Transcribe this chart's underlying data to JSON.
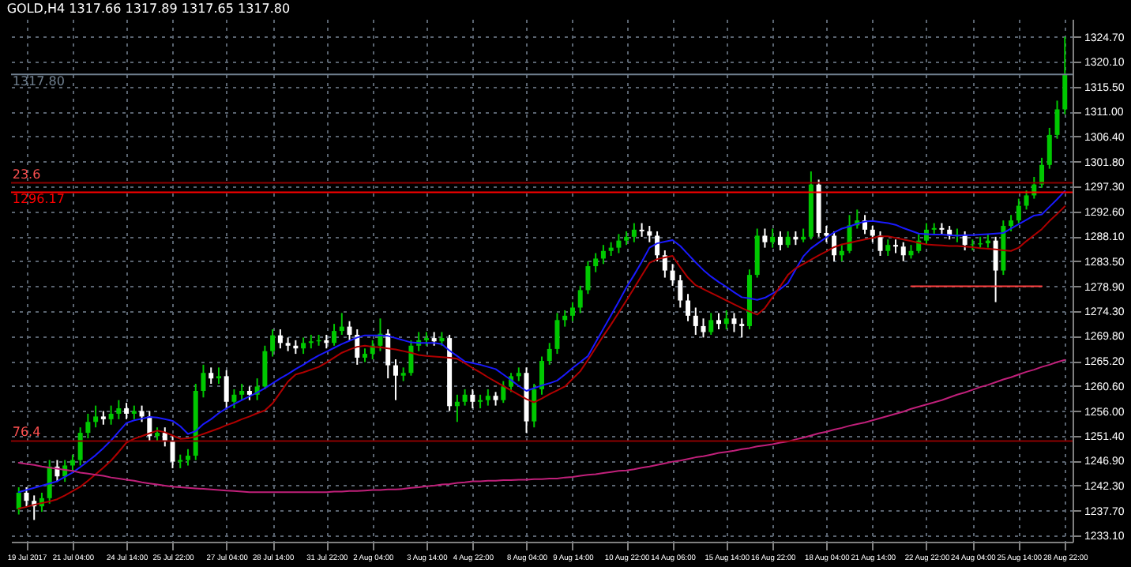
{
  "chart_data": {
    "type": "candlestick",
    "title": "GOLD,H4  1317.66 1317.89 1317.65 1317.80",
    "categories": [
      null,
      "19 Jul 2017",
      null,
      null,
      null,
      null,
      null,
      "21 Jul 04:00",
      null,
      null,
      null,
      null,
      null,
      null,
      "24 Jul 14:00",
      null,
      null,
      null,
      null,
      null,
      "25 Jul 22:00",
      null,
      null,
      null,
      null,
      null,
      null,
      "27 Jul 04:00",
      null,
      null,
      null,
      null,
      null,
      "28 Jul 14:00",
      null,
      null,
      null,
      null,
      null,
      null,
      "31 Jul 22:00",
      null,
      null,
      null,
      null,
      null,
      "2 Aug 04:00",
      null,
      null,
      null,
      null,
      null,
      null,
      "3 Aug 14:00",
      null,
      null,
      null,
      null,
      null,
      "4 Aug 22:00",
      null,
      null,
      null,
      null,
      null,
      null,
      "8 Aug 04:00",
      null,
      null,
      null,
      null,
      null,
      "9 Aug 14:00",
      null,
      null,
      null,
      null,
      null,
      null,
      "10 Aug 22:00",
      null,
      null,
      null,
      null,
      null,
      "14 Aug 06:00",
      null,
      null,
      null,
      null,
      null,
      null,
      "15 Aug 14:00",
      null,
      null,
      null,
      null,
      null,
      "16 Aug 22:00",
      null,
      null,
      null,
      null,
      null,
      null,
      "18 Aug 04:00",
      null,
      null,
      null,
      null,
      null,
      "21 Aug 14:00",
      null,
      null,
      null,
      null,
      null,
      null,
      "22 Aug 22:00",
      null,
      null,
      null,
      null,
      null,
      "24 Aug 04:00",
      null,
      null,
      null,
      null,
      null,
      "25 Aug 14:00",
      null,
      null,
      null,
      null,
      null,
      "28 Aug 22:00"
    ],
    "ohlc": [
      [
        1238,
        1242,
        1237,
        1241
      ],
      [
        1241,
        1242,
        1238.5,
        1239.5
      ],
      [
        1239.5,
        1240.5,
        1236,
        1238.5
      ],
      [
        1238.5,
        1241,
        1237.5,
        1240
      ],
      [
        1240,
        1247,
        1239,
        1245.8
      ],
      [
        1245.8,
        1247,
        1243,
        1244
      ],
      [
        1244,
        1247,
        1243,
        1246
      ],
      [
        1246,
        1248,
        1245,
        1247
      ],
      [
        1247,
        1253,
        1246,
        1252
      ],
      [
        1252,
        1255.5,
        1251,
        1254
      ],
      [
        1254,
        1257,
        1253,
        1255
      ],
      [
        1255,
        1256,
        1253.5,
        1254.5
      ],
      [
        1254.5,
        1257,
        1253.5,
        1255.5
      ],
      [
        1255.5,
        1258,
        1254.5,
        1256.5
      ],
      [
        1256.5,
        1257.5,
        1254.5,
        1255.5
      ],
      [
        1255.5,
        1257,
        1254.5,
        1256
      ],
      [
        1256,
        1257,
        1254,
        1255
      ],
      [
        1255,
        1256,
        1250.5,
        1251.4
      ],
      [
        1251.4,
        1253,
        1250.5,
        1252
      ],
      [
        1252,
        1253,
        1249.5,
        1250.5
      ],
      [
        1250.5,
        1251.5,
        1245.5,
        1246.7
      ],
      [
        1246.7,
        1248,
        1245.5,
        1247
      ],
      [
        1247,
        1249,
        1246,
        1247.8
      ],
      [
        1247.8,
        1261,
        1247,
        1259.7
      ],
      [
        1259.7,
        1264.5,
        1258.5,
        1263
      ],
      [
        1263,
        1264,
        1261,
        1262
      ],
      [
        1262,
        1264,
        1261,
        1262.4
      ],
      [
        1262.4,
        1263.5,
        1256.5,
        1257.7
      ],
      [
        1257.7,
        1260,
        1256.5,
        1259
      ],
      [
        1259,
        1261,
        1258,
        1259.7
      ],
      [
        1259.7,
        1260.5,
        1258,
        1259
      ],
      [
        1259,
        1262,
        1258,
        1260.5
      ],
      [
        1260.5,
        1268,
        1260,
        1267
      ],
      [
        1267,
        1271,
        1266,
        1269.9
      ],
      [
        1269.9,
        1271,
        1267.5,
        1268.5
      ],
      [
        1268.5,
        1269.5,
        1267,
        1268
      ],
      [
        1268,
        1269,
        1266.5,
        1267.5
      ],
      [
        1267.5,
        1269.5,
        1266.5,
        1268.5
      ],
      [
        1268.5,
        1270,
        1267.5,
        1268.8
      ],
      [
        1268.8,
        1270,
        1268,
        1269
      ],
      [
        1269,
        1270,
        1267.5,
        1268.5
      ],
      [
        1268.5,
        1272,
        1268,
        1270.7
      ],
      [
        1270.7,
        1274,
        1270,
        1271.5
      ],
      [
        1271.5,
        1272.5,
        1269,
        1270
      ],
      [
        1270,
        1271,
        1264.5,
        1265.8
      ],
      [
        1265.8,
        1267.5,
        1265,
        1266.5
      ],
      [
        1266.5,
        1269,
        1265.5,
        1268
      ],
      [
        1268,
        1273,
        1267,
        1270.2
      ],
      [
        1270.2,
        1271,
        1262,
        1264.4
      ],
      [
        1264.4,
        1265.5,
        1258,
        1262.5
      ],
      [
        1262.5,
        1264,
        1261.5,
        1263
      ],
      [
        1263,
        1269,
        1262.5,
        1268
      ],
      [
        1268,
        1270.5,
        1267,
        1269
      ],
      [
        1269,
        1270.5,
        1268,
        1269.4
      ],
      [
        1269.4,
        1270.5,
        1268,
        1268.8
      ],
      [
        1268.8,
        1270.5,
        1268,
        1269.4
      ],
      [
        1269.4,
        1270,
        1256,
        1256.9
      ],
      [
        1256.9,
        1259,
        1254,
        1257.7
      ],
      [
        1257.7,
        1260,
        1257,
        1259
      ],
      [
        1259,
        1260,
        1256.5,
        1257.7
      ],
      [
        1257.7,
        1259,
        1256.5,
        1258
      ],
      [
        1258,
        1260,
        1257,
        1258.8
      ],
      [
        1258.8,
        1259.5,
        1257,
        1258
      ],
      [
        1258,
        1261.5,
        1257.5,
        1260.5
      ],
      [
        1260.5,
        1263,
        1259.5,
        1262.4
      ],
      [
        1262.4,
        1264,
        1261.5,
        1263
      ],
      [
        1263,
        1264,
        1252,
        1254.1
      ],
      [
        1254.1,
        1261,
        1253,
        1260
      ],
      [
        1260,
        1266,
        1259,
        1265.2
      ],
      [
        1265.2,
        1268.5,
        1264.5,
        1267.4
      ],
      [
        1267.4,
        1274,
        1266.5,
        1272.7
      ],
      [
        1272.7,
        1274.5,
        1271.5,
        1273.5
      ],
      [
        1273.5,
        1276,
        1272.5,
        1275
      ],
      [
        1275,
        1279,
        1274,
        1278.2
      ],
      [
        1278.2,
        1283.5,
        1277.5,
        1282.6
      ],
      [
        1282.6,
        1285,
        1281.5,
        1284
      ],
      [
        1284,
        1286.5,
        1283,
        1285.4
      ],
      [
        1285.4,
        1287,
        1284.5,
        1286
      ],
      [
        1286,
        1288.5,
        1285,
        1287.3
      ],
      [
        1287.3,
        1289,
        1286.5,
        1288
      ],
      [
        1288,
        1290.5,
        1287,
        1289.3
      ],
      [
        1289.3,
        1290.5,
        1288,
        1289
      ],
      [
        1289,
        1290,
        1287,
        1288.2
      ],
      [
        1288.2,
        1289,
        1283.5,
        1284.6
      ],
      [
        1284.6,
        1285.5,
        1280.5,
        1281.8
      ],
      [
        1281.8,
        1283,
        1279,
        1280
      ],
      [
        1280,
        1281,
        1275,
        1276.3
      ],
      [
        1276.3,
        1277.5,
        1272.5,
        1273.5
      ],
      [
        1273.5,
        1275,
        1270,
        1271.6
      ],
      [
        1271.6,
        1273,
        1269.5,
        1270.5
      ],
      [
        1270.5,
        1274,
        1270,
        1272.7
      ],
      [
        1272.7,
        1274,
        1271,
        1272
      ],
      [
        1272,
        1274.5,
        1271,
        1273
      ],
      [
        1273,
        1274,
        1270.5,
        1272
      ],
      [
        1272,
        1273,
        1269.5,
        1271.6
      ],
      [
        1271.6,
        1282,
        1271,
        1281
      ],
      [
        1281,
        1289.5,
        1280.5,
        1288.2
      ],
      [
        1288.2,
        1289.5,
        1286,
        1287
      ],
      [
        1287,
        1289.5,
        1286,
        1288
      ],
      [
        1288,
        1289,
        1285.5,
        1286.5
      ],
      [
        1286.5,
        1289,
        1286,
        1288
      ],
      [
        1288,
        1289,
        1286.5,
        1287.5
      ],
      [
        1287.5,
        1289.5,
        1287,
        1288
      ],
      [
        1288,
        1300,
        1287.5,
        1297.6
      ],
      [
        1297.6,
        1298.5,
        1288,
        1288.7
      ],
      [
        1288.7,
        1290,
        1287,
        1288.2
      ],
      [
        1288.2,
        1289,
        1283.5,
        1284.6
      ],
      [
        1284.6,
        1286.5,
        1283.5,
        1285.4
      ],
      [
        1285.4,
        1292,
        1285,
        1290.1
      ],
      [
        1290.1,
        1293,
        1289.5,
        1291
      ],
      [
        1291,
        1292,
        1288.5,
        1289.3
      ],
      [
        1289.3,
        1290,
        1287,
        1288.2
      ],
      [
        1288.2,
        1289,
        1284.5,
        1285.4
      ],
      [
        1285.4,
        1287.5,
        1284.5,
        1286.5
      ],
      [
        1286.5,
        1287.5,
        1285,
        1286.2
      ],
      [
        1286.2,
        1287,
        1283.5,
        1284.6
      ],
      [
        1284.6,
        1286.5,
        1284,
        1285.4
      ],
      [
        1285.4,
        1288.5,
        1285,
        1287.3
      ],
      [
        1287.3,
        1290.5,
        1286.5,
        1289.3
      ],
      [
        1289.3,
        1290.5,
        1288.5,
        1289.6
      ],
      [
        1289.6,
        1290.5,
        1288.5,
        1289.3
      ],
      [
        1289.3,
        1290,
        1287.5,
        1288.2
      ],
      [
        1288.2,
        1289.5,
        1287,
        1288.4
      ],
      [
        1288.4,
        1289,
        1285.5,
        1286.5
      ],
      [
        1286.5,
        1287.5,
        1285.5,
        1286.6
      ],
      [
        1286.6,
        1288,
        1286,
        1286.8
      ],
      [
        1286.8,
        1288.5,
        1286,
        1287.3
      ],
      [
        1287.3,
        1288,
        1276,
        1281.8
      ],
      [
        1281.8,
        1291,
        1281,
        1290
      ],
      [
        1290,
        1292,
        1289,
        1291
      ],
      [
        1291,
        1295,
        1290.5,
        1293.7
      ],
      [
        1293.7,
        1296.5,
        1293,
        1295.6
      ],
      [
        1295.6,
        1299,
        1295,
        1297.6
      ],
      [
        1297.6,
        1302.5,
        1297,
        1301.2
      ],
      [
        1301.2,
        1308,
        1300.5,
        1306.7
      ],
      [
        1306.7,
        1313,
        1306,
        1311.4
      ],
      [
        1311.4,
        1324.7,
        1310.5,
        1317.8
      ]
    ],
    "colors": [
      "#00c800",
      "#ffffff",
      "#ffffff",
      "#00c800",
      "#00c800",
      "#ffffff",
      "#00c800",
      "#00c800",
      "#00c800",
      "#00c800",
      "#00c800",
      "#ffffff",
      "#00c800",
      "#00c800",
      "#ffffff",
      "#00c800",
      "#ffffff",
      "#ffffff",
      "#00c800",
      "#ffffff",
      "#ffffff",
      "#00c800",
      "#00c800",
      "#00c800",
      "#00c800",
      "#ffffff",
      "#00c800",
      "#ffffff",
      "#00c800",
      "#00c800",
      "#ffffff",
      "#00c800",
      "#00c800",
      "#00c800",
      "#ffffff",
      "#ffffff",
      "#ffffff",
      "#00c800",
      "#00c800",
      "#00c800",
      "#ffffff",
      "#00c800",
      "#00c800",
      "#ffffff",
      "#ffffff",
      "#00c800",
      "#00c800",
      "#00c800",
      "#ffffff",
      "#ffffff",
      "#00c800",
      "#00c800",
      "#00c800",
      "#00c800",
      "#ffffff",
      "#00c800",
      "#ffffff",
      "#00c800",
      "#00c800",
      "#ffffff",
      "#00c800",
      "#00c800",
      "#ffffff",
      "#00c800",
      "#00c800",
      "#00c800",
      "#ffffff",
      "#00c800",
      "#00c800",
      "#00c800",
      "#00c800",
      "#00c800",
      "#00c800",
      "#00c800",
      "#00c800",
      "#00c800",
      "#00c800",
      "#00c800",
      "#00c800",
      "#00c800",
      "#00c800",
      "#ffffff",
      "#ffffff",
      "#ffffff",
      "#ffffff",
      "#ffffff",
      "#ffffff",
      "#ffffff",
      "#ffffff",
      "#ffffff",
      "#00c800",
      "#ffffff",
      "#00c800",
      "#ffffff",
      "#ffffff",
      "#00c800",
      "#00c800",
      "#ffffff",
      "#00c800",
      "#ffffff",
      "#00c800",
      "#ffffff",
      "#00c800",
      "#00c800",
      "#ffffff",
      "#ffffff",
      "#ffffff",
      "#00c800",
      "#00c800",
      "#00c800",
      "#ffffff",
      "#ffffff",
      "#ffffff",
      "#00c800",
      "#ffffff",
      "#ffffff",
      "#00c800",
      "#00c800",
      "#00c800",
      "#00c800",
      "#ffffff",
      "#ffffff",
      "#00c800",
      "#ffffff",
      "#00c800",
      "#00c800",
      "#00c800",
      "#ffffff",
      "#00c800",
      "#00c800",
      "#00c800",
      "#00c800",
      "#00c800",
      "#00c800",
      "#00c800",
      "#00c800",
      "#00c800"
    ],
    "series": [
      {
        "type": "line",
        "color": "#1a1aff",
        "values": [
          1241.1,
          1241.5,
          1241.9,
          1242.3,
          1242.7,
          1243.1,
          1243.9,
          1244.7,
          1245.7,
          1246.8,
          1247.9,
          1249.2,
          1250.6,
          1252.2,
          1253.8,
          1254.3,
          1254.6,
          1254.9,
          1254.8,
          1254.5,
          1254.2,
          1253.2,
          1251.8,
          1252.3,
          1253.6,
          1254.5,
          1255.6,
          1256.5,
          1257.3,
          1258,
          1258.7,
          1259.4,
          1260.2,
          1261.1,
          1262,
          1262.8,
          1263.7,
          1264.5,
          1265.4,
          1266.2,
          1266.9,
          1267.6,
          1268.3,
          1268.9,
          1269.5,
          1269.9,
          1269.9,
          1269.9,
          1269.8,
          1269.4,
          1269,
          1268.6,
          1268.5,
          1268.5,
          1268.5,
          1268.3,
          1267.1,
          1266.1,
          1265.1,
          1264.8,
          1264.5,
          1264.1,
          1263.7,
          1262.7,
          1261.7,
          1260.6,
          1259.7,
          1260.2,
          1260.7,
          1261.1,
          1261.6,
          1262.7,
          1263.9,
          1265,
          1266.1,
          1268.6,
          1271.1,
          1273.6,
          1276.1,
          1278.7,
          1281,
          1283.4,
          1286,
          1286.8,
          1287.1,
          1287.4,
          1286.3,
          1284.8,
          1283.3,
          1281.9,
          1280.7,
          1279.7,
          1278.8,
          1277.8,
          1276.9,
          1276.7,
          1276.4,
          1276.8,
          1277.6,
          1278.4,
          1279.5,
          1282,
          1284.4,
          1285.9,
          1286.9,
          1287.9,
          1288.8,
          1289.5,
          1289.9,
          1290.4,
          1290.8,
          1290.9,
          1290.7,
          1290.5,
          1290.2,
          1289.6,
          1289.1,
          1288.6,
          1288.5,
          1288.4,
          1288.4,
          1288.3,
          1288.2,
          1288.3,
          1288.3,
          1288.4,
          1288.5,
          1288.6,
          1288.7,
          1289.5,
          1290.3,
          1291.1,
          1291.9,
          1292.1,
          1293.5,
          1294.9,
          1296.4
        ]
      },
      {
        "type": "line",
        "color": "#b00000",
        "values": [
          1238.1,
          1238.4,
          1238.8,
          1239.1,
          1239.4,
          1239.8,
          1240.5,
          1241.3,
          1242.1,
          1243.2,
          1244.4,
          1245.6,
          1246.9,
          1248.5,
          1250.2,
          1250.9,
          1251.4,
          1251.9,
          1252.4,
          1252.1,
          1251.5,
          1250.9,
          1251,
          1251.3,
          1251.8,
          1252.3,
          1252.8,
          1253.4,
          1253.9,
          1254.5,
          1255,
          1255.6,
          1256.1,
          1257.4,
          1259.4,
          1261.4,
          1262.7,
          1263.1,
          1263.6,
          1264.1,
          1264.9,
          1265.8,
          1266.7,
          1267.3,
          1267.8,
          1268,
          1267.8,
          1267.7,
          1267.5,
          1267.3,
          1267,
          1266.7,
          1266.3,
          1266.1,
          1266,
          1265.9,
          1265.8,
          1265.6,
          1264.8,
          1263.9,
          1263.1,
          1262.2,
          1261.4,
          1260.6,
          1259.8,
          1259,
          1258.2,
          1257.6,
          1258.3,
          1259.1,
          1259.8,
          1260.5,
          1261.9,
          1263.3,
          1265.4,
          1267.6,
          1269.8,
          1271.9,
          1274.1,
          1276.3,
          1278.6,
          1280.9,
          1283.2,
          1283.9,
          1284.2,
          1284.5,
          1282.4,
          1280.5,
          1279.1,
          1278.4,
          1277.7,
          1277,
          1276.3,
          1275.6,
          1274.9,
          1274.3,
          1273.7,
          1274.9,
          1276.9,
          1278.9,
          1281,
          1282.2,
          1283,
          1283.8,
          1284.6,
          1285.3,
          1286.1,
          1286.6,
          1286.9,
          1287.2,
          1287.5,
          1287.8,
          1288.1,
          1288.1,
          1287.8,
          1287.5,
          1287.2,
          1286.9,
          1286.6,
          1286.5,
          1286.4,
          1286.3,
          1286.3,
          1286.2,
          1286.1,
          1285.9,
          1285.8,
          1285.7,
          1285.5,
          1285.4,
          1286,
          1287.2,
          1288.3,
          1289.4,
          1290.9,
          1292.2,
          1293.6
        ]
      },
      {
        "type": "line",
        "color": "#c0207a",
        "values": [
          1246.5,
          1246.3,
          1246.1,
          1245.8,
          1245.6,
          1245.4,
          1245.2,
          1245,
          1244.7,
          1244.5,
          1244.3,
          1244.1,
          1243.8,
          1243.6,
          1243.4,
          1243.2,
          1242.9,
          1242.7,
          1242.5,
          1242.3,
          1242.1,
          1242,
          1241.9,
          1241.8,
          1241.7,
          1241.6,
          1241.5,
          1241.4,
          1241.3,
          1241.2,
          1241.1,
          1241.1,
          1241.1,
          1241.1,
          1241.1,
          1241.1,
          1241.1,
          1241.1,
          1241.1,
          1241.1,
          1241.1,
          1241.2,
          1241.2,
          1241.3,
          1241.3,
          1241.4,
          1241.5,
          1241.5,
          1241.6,
          1241.6,
          1241.7,
          1241.9,
          1242,
          1242.2,
          1242.3,
          1242.5,
          1242.6,
          1242.8,
          1242.9,
          1243.1,
          1243.1,
          1243.2,
          1243.2,
          1243.3,
          1243.3,
          1243.4,
          1243.4,
          1243.5,
          1243.5,
          1243.6,
          1243.6,
          1243.8,
          1243.9,
          1244.1,
          1244.3,
          1244.4,
          1244.6,
          1244.8,
          1245,
          1245.1,
          1245.3,
          1245.6,
          1245.8,
          1246.1,
          1246.4,
          1246.7,
          1246.9,
          1247.2,
          1247.5,
          1247.7,
          1248,
          1248.3,
          1248.5,
          1248.7,
          1249,
          1249.2,
          1249.5,
          1249.7,
          1249.9,
          1250.2,
          1250.4,
          1250.8,
          1251.1,
          1251.5,
          1251.9,
          1252.2,
          1252.6,
          1252.9,
          1253.3,
          1253.6,
          1253.9,
          1254.3,
          1254.7,
          1255.1,
          1255.5,
          1255.9,
          1256.4,
          1256.8,
          1257.2,
          1257.6,
          1258,
          1258.5,
          1259,
          1259.4,
          1259.9,
          1260.4,
          1260.8,
          1261.3,
          1261.8,
          1262.2,
          1262.7,
          1263.2,
          1263.6,
          1264.1,
          1264.5,
          1265,
          1265.4
        ]
      },
      {
        "type": "line",
        "color": "#ff4040",
        "values": [
          null,
          null,
          null,
          null,
          null,
          null,
          null,
          null,
          null,
          null,
          null,
          null,
          null,
          null,
          null,
          null,
          null,
          null,
          null,
          null,
          null,
          null,
          null,
          null,
          null,
          null,
          null,
          null,
          null,
          null,
          null,
          null,
          null,
          null,
          null,
          null,
          null,
          null,
          null,
          null,
          null,
          null,
          null,
          null,
          null,
          null,
          null,
          null,
          null,
          null,
          null,
          null,
          null,
          null,
          null,
          null,
          null,
          null,
          null,
          null,
          null,
          null,
          null,
          null,
          null,
          null,
          null,
          null,
          null,
          null,
          null,
          null,
          null,
          null,
          null,
          null,
          null,
          null,
          null,
          null,
          null,
          null,
          null,
          null,
          null,
          null,
          null,
          null,
          null,
          null,
          null,
          null,
          null,
          null,
          null,
          null,
          null,
          null,
          null,
          null,
          null,
          null,
          null,
          null,
          null,
          null,
          null,
          null,
          null,
          null,
          null,
          null,
          null,
          null,
          null,
          null,
          1278.9,
          1278.9,
          1278.9,
          1278.9,
          1278.9,
          1278.9,
          1278.9,
          1278.9,
          1278.9,
          1278.9,
          1278.9,
          1278.9,
          1278.9,
          1278.9,
          1278.9,
          1278.9,
          1278.9,
          1278.9,
          null,
          null,
          null
        ]
      }
    ],
    "ref_lines": [
      {
        "axis": "y",
        "value": 1297.9,
        "color": "#8b0000"
      },
      {
        "axis": "y",
        "value": 1296.17,
        "label": "1296.17",
        "color": "#ff0000"
      },
      {
        "axis": "y",
        "value": 1250.5,
        "color": "#8b0000"
      },
      {
        "axis": "y",
        "value": 1317.8,
        "label": "1317.80",
        "color": "#708090"
      }
    ],
    "annotations": [
      {
        "text": "23.6",
        "y": 1297.9
      },
      {
        "text": "76.4",
        "y": 1250.5
      }
    ],
    "ylim": [
      1232,
      1328
    ],
    "yticks": [
      {
        "value": 1324.7,
        "label": "1324.70"
      },
      {
        "value": 1320.1,
        "label": "1320.10"
      },
      {
        "value": 1315.5,
        "label": "1315.50"
      },
      {
        "value": 1311,
        "label": "1311.00"
      },
      {
        "value": 1306.4,
        "label": "1306.40"
      },
      {
        "value": 1301.8,
        "label": "1301.80"
      },
      {
        "value": 1297.3,
        "label": "1297.30"
      },
      {
        "value": 1292.6,
        "label": "1292.60"
      },
      {
        "value": 1288.1,
        "label": "1288.10"
      },
      {
        "value": 1283.5,
        "label": "1283.50"
      },
      {
        "value": 1278.9,
        "label": "1278.90"
      },
      {
        "value": 1274.3,
        "label": "1274.30"
      },
      {
        "value": 1269.8,
        "label": "1269.80"
      },
      {
        "value": 1265.2,
        "label": "1265.20"
      },
      {
        "value": 1260.6,
        "label": "1260.60"
      },
      {
        "value": 1256,
        "label": "1256.00"
      },
      {
        "value": 1251.4,
        "label": "1251.40"
      },
      {
        "value": 1246.9,
        "label": "1246.90"
      },
      {
        "value": 1242.3,
        "label": "1242.30"
      },
      {
        "value": 1237.7,
        "label": "1237.70"
      },
      {
        "value": 1233.1,
        "label": "1233.10"
      }
    ],
    "grid": true
  }
}
